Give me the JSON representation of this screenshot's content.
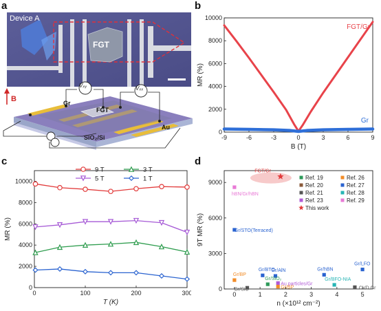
{
  "panels": {
    "a": {
      "letter": "a",
      "micro_label": "Device A",
      "flake_label": "FGT",
      "schematic": {
        "fgt_label": "FGT",
        "gr_label": "Gr",
        "au_label": "Au",
        "substrate_label": "SiO₂/Si",
        "vxy_label": "Vₓᵧ",
        "vxx_label": "Vₓₓ",
        "b_label": "B"
      }
    },
    "b": {
      "letter": "b",
      "chart_data": {
        "type": "line",
        "xlabel": "B (T)",
        "ylabel": "MR (%)",
        "xlim": [
          -9,
          9
        ],
        "ylim": [
          0,
          10000
        ],
        "xticks": [
          -9,
          -6,
          -3,
          0,
          3,
          6,
          9
        ],
        "yticks": [
          0,
          2000,
          4000,
          6000,
          8000,
          10000
        ],
        "series": [
          {
            "name": "FGT/Gr",
            "color": "#e8434a",
            "x": [
              -9,
              -7.5,
              -6,
              -4.5,
              -3,
              -1.5,
              -0.5,
              0,
              0.5,
              1.5,
              3,
              4.5,
              6,
              7.5,
              9
            ],
            "y": [
              9350,
              7950,
              6500,
              5000,
              3500,
              1950,
              650,
              80,
              600,
              1800,
              3450,
              5000,
              6550,
              8100,
              9650
            ]
          },
          {
            "name": "Gr",
            "color": "#2f6fd8",
            "x": [
              -9,
              -6,
              -3,
              -1,
              0,
              1,
              3,
              6,
              9
            ],
            "y": [
              270,
              240,
              200,
              140,
              60,
              140,
              200,
              240,
              270
            ]
          }
        ]
      }
    },
    "c": {
      "letter": "c",
      "chart_data": {
        "type": "line",
        "xlabel": "T (K)",
        "ylabel": "MR (%)",
        "xlim": [
          0,
          300
        ],
        "ylim": [
          0,
          11000
        ],
        "xticks": [
          0,
          100,
          200,
          300
        ],
        "yticks": [
          0,
          2000,
          4000,
          6000,
          8000,
          10000
        ],
        "legend": [
          "9 T",
          "3 T",
          "5 T",
          "1 T"
        ],
        "series": [
          {
            "name": "9 T",
            "color": "#e23b3b",
            "marker": "circle",
            "x": [
              2,
              50,
              100,
              150,
              200,
              250,
              300
            ],
            "y": [
              9750,
              9400,
              9250,
              9050,
              9300,
              9500,
              9450
            ]
          },
          {
            "name": "5 T",
            "color": "#a65ad6",
            "marker": "triangle-down",
            "x": [
              2,
              50,
              100,
              150,
              200,
              250,
              300
            ],
            "y": [
              5700,
              5900,
              6200,
              6200,
              6300,
              6100,
              5200
            ]
          },
          {
            "name": "3 T",
            "color": "#2f9d4f",
            "marker": "triangle-up",
            "x": [
              2,
              50,
              100,
              150,
              200,
              250,
              300
            ],
            "y": [
              3300,
              3800,
              4000,
              4100,
              4250,
              3850,
              3350
            ]
          },
          {
            "name": "1 T",
            "color": "#2a63d0",
            "marker": "diamond",
            "x": [
              2,
              50,
              100,
              150,
              200,
              250,
              300
            ],
            "y": [
              1650,
              1750,
              1500,
              1400,
              1400,
              1100,
              800
            ]
          }
        ]
      }
    },
    "d": {
      "letter": "d",
      "chart_data": {
        "type": "scatter",
        "xlabel": "n (×10¹² cm⁻²)",
        "ylabel": "9T MR (%)",
        "xlim": [
          -0.4,
          5.4
        ],
        "ylim": [
          0,
          10000
        ],
        "xticks": [
          0,
          1,
          2,
          3,
          4,
          5
        ],
        "yticks": [
          0,
          3000,
          6000,
          9000
        ],
        "legend": [
          "Ref. 19",
          "Ref. 20",
          "Ref. 21",
          "Ref. 23",
          "This work",
          "Ref. 26",
          "Ref. 27",
          "Ref. 28",
          "Ref. 29"
        ],
        "legend_colors": [
          "#2e9a5a",
          "#8a5a3a",
          "#555555",
          "#b05ad6",
          "#e23b3b",
          "#f28c28",
          "#2a63d0",
          "#27b5b5",
          "#e87ad6"
        ],
        "points": [
          {
            "label": "FGT/Gr",
            "x": 1.8,
            "y": 9500,
            "color": "#e23b3b",
            "marker": "star"
          },
          {
            "label": "hBN/Gr/hBN",
            "x": 0.0,
            "y": 8600,
            "color": "#e87ad6",
            "marker": "square"
          },
          {
            "label": "Gr/STO(Terraced)",
            "x": 0.0,
            "y": 5000,
            "color": "#2a63d0",
            "marker": "square"
          },
          {
            "label": "Gr/BP",
            "x": 0.0,
            "y": 750,
            "color": "#f28c28",
            "marker": "square"
          },
          {
            "label": "Gr/SiC",
            "x": 0.5,
            "y": 100,
            "color": "#555555",
            "marker": "square"
          },
          {
            "label": "Gr/BTO",
            "x": 1.1,
            "y": 1150,
            "color": "#2a63d0",
            "marker": "square"
          },
          {
            "label": "Gr/AlN",
            "x": 1.6,
            "y": 1100,
            "color": "#2a63d0",
            "marker": "square"
          },
          {
            "label": "Gr/SiO₂",
            "x": 1.3,
            "y": 400,
            "color": "#2e9a5a",
            "marker": "square"
          },
          {
            "label": "Au particles/Gr",
            "x": 1.7,
            "y": 500,
            "color": "#b05ad6",
            "marker": "square"
          },
          {
            "label": "Gr/BP",
            "x": 1.7,
            "y": 200,
            "color": "#f28c28",
            "marker": "square"
          },
          {
            "label": "Gr/hBN",
            "x": 3.5,
            "y": 1200,
            "color": "#2a63d0",
            "marker": "square"
          },
          {
            "label": "Gr/BFO-NIA",
            "x": 3.9,
            "y": 350,
            "color": "#27b5b5",
            "marker": "square"
          },
          {
            "label": "Gr/LFO",
            "x": 5.0,
            "y": 1650,
            "color": "#2a63d0",
            "marker": "square"
          },
          {
            "label": "CVD Gr",
            "x": 4.7,
            "y": 150,
            "color": "#555555",
            "marker": "square"
          }
        ]
      }
    }
  }
}
